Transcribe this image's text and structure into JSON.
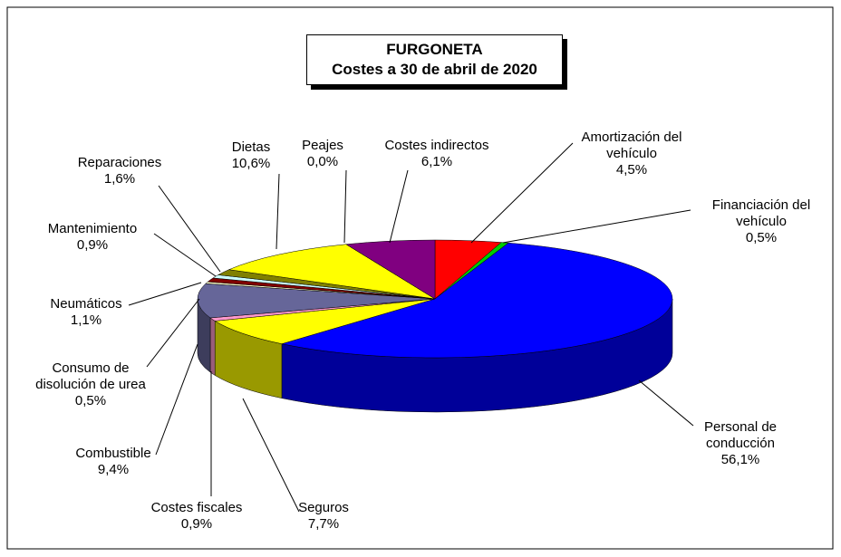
{
  "chart_data": {
    "type": "pie3d",
    "title": "FURGONETA",
    "subtitle": "Costes a 30 de abril de 2020",
    "categories": [
      "Amortización del vehículo",
      "Financiación del vehículo",
      "Personal de conducción",
      "Seguros",
      "Costes fiscales",
      "Combustible",
      "Consumo de disolución de urea",
      "Neumáticos",
      "Mantenimiento",
      "Reparaciones",
      "Dietas",
      "Peajes",
      "Costes indirectos"
    ],
    "values": [
      4.5,
      0.5,
      56.1,
      7.7,
      0.9,
      9.4,
      0.5,
      1.1,
      0.9,
      1.6,
      10.6,
      0.0,
      6.1
    ],
    "value_labels": [
      "4,5%",
      "0,5%",
      "56,1%",
      "7,7%",
      "0,9%",
      "9,4%",
      "0,5%",
      "1,1%",
      "0,9%",
      "1,6%",
      "10,6%",
      "0,0%",
      "6,1%"
    ],
    "colors": [
      "#ff0000",
      "#00cc00",
      "#0000ff",
      "#ffff00",
      "#ff99cc",
      "#666699",
      "#ffffcc",
      "#800000",
      "#ccffff",
      "#808000",
      "#ffff00",
      "#c0c0c0",
      "#800080"
    ]
  }
}
